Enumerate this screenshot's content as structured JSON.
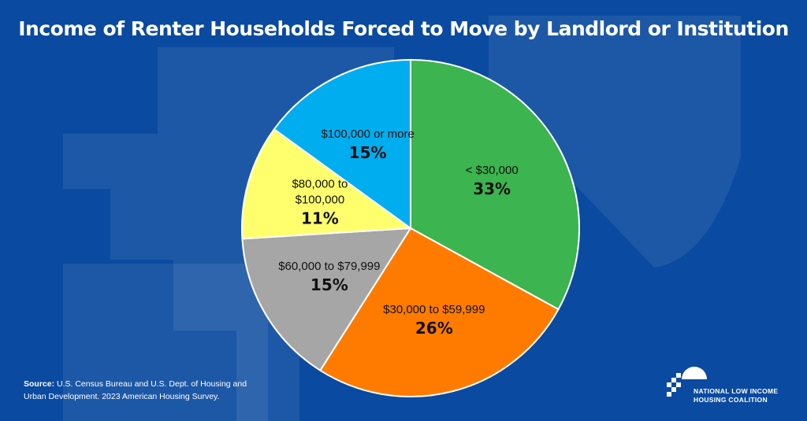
{
  "title": "Income of Renter Households Forced to Move by Landlord or Institution",
  "source": {
    "label": "Source:",
    "text": "U.S. Census Bureau and U.S. Dept. of Housing and Urban Development. 2023 American Housing Survey."
  },
  "logo": {
    "line1": "NATIONAL LOW INCOME",
    "line2": "HOUSING COALITION"
  },
  "colors": {
    "background": "#0a4aa0",
    "slice_border": "#ffffff"
  },
  "chart_data": {
    "type": "pie",
    "title": "Income of Renter Households Forced to Move by Landlord or Institution",
    "slices": [
      {
        "label": "< $30,000",
        "label_lines": [
          "< $30,000"
        ],
        "value": 33,
        "display": "33%",
        "color": "#3cb44f"
      },
      {
        "label": "$30,000 to $59,999",
        "label_lines": [
          "$30,000 to $59,999"
        ],
        "value": 26,
        "display": "26%",
        "color": "#ff7b00"
      },
      {
        "label": "$60,000 to $79,999",
        "label_lines": [
          "$60,000 to $79,999"
        ],
        "value": 15,
        "display": "15%",
        "color": "#a6a6a6"
      },
      {
        "label": "$80,000 to $100,000",
        "label_lines": [
          "$80,000 to",
          "$100,000"
        ],
        "value": 11,
        "display": "11%",
        "color": "#ffff6e"
      },
      {
        "label": "$100,000 or more",
        "label_lines": [
          "$100,000 or more"
        ],
        "value": 15,
        "display": "15%",
        "color": "#00aeef"
      }
    ],
    "start": "12 o'clock",
    "direction": "clockwise",
    "legend": "none (labels inside slices)"
  }
}
